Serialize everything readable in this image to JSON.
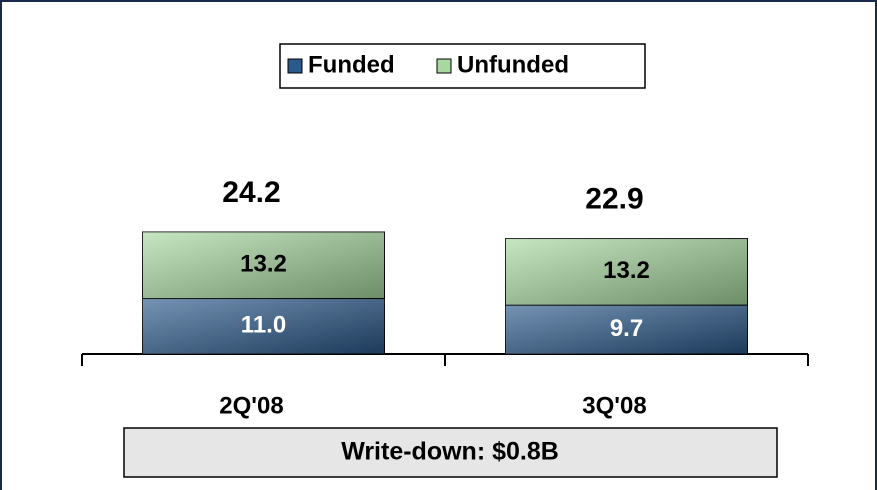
{
  "chart_data": {
    "type": "stacked_bar",
    "categories": [
      "2Q'08",
      "3Q'08"
    ],
    "series": [
      {
        "name": "Funded",
        "color": "#2a5a8c",
        "values": [
          11.0,
          9.7
        ],
        "value_labels": [
          "11.0",
          "9.7"
        ]
      },
      {
        "name": "Unfunded",
        "color": "#a8d8a0",
        "values": [
          13.2,
          13.2
        ],
        "value_labels": [
          "13.2",
          "13.2"
        ]
      }
    ],
    "totals": [
      "24.2",
      "22.9"
    ],
    "annotation": "Write-down: $0.8B",
    "legend": "top"
  }
}
